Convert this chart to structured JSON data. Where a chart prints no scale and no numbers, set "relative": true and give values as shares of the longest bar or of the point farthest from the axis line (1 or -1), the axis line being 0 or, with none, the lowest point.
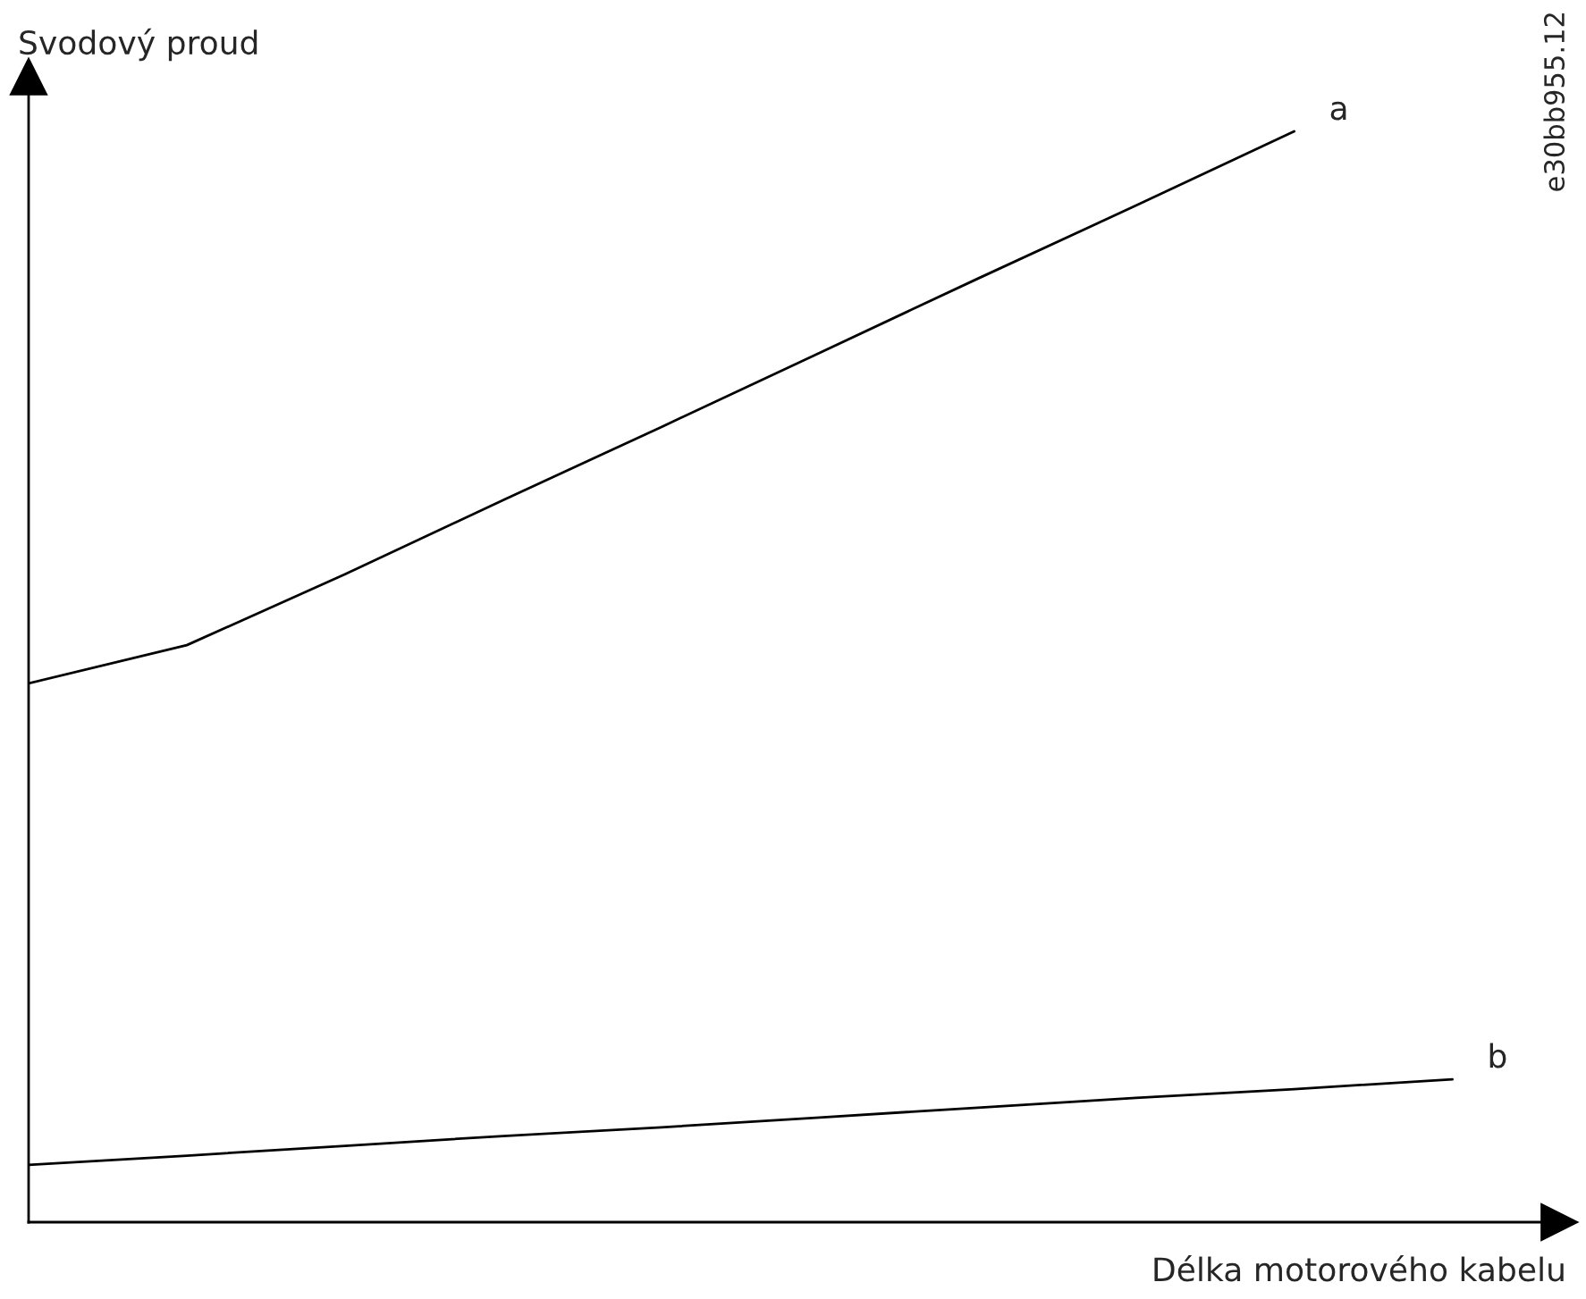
{
  "chart_data": {
    "type": "line",
    "relative": true,
    "xlabel": "Délka motorového kabelu",
    "ylabel": "Svodový proud",
    "annotations": [
      "e30bb955.12"
    ],
    "categories": [
      null,
      null,
      null,
      null,
      null,
      null,
      null,
      null,
      null,
      null
    ],
    "legend": false,
    "marker": "none",
    "line_style": "solid",
    "series": [
      {
        "name": "a",
        "color": "#000000",
        "values": [
          0.494,
          0.529,
          0.594,
          0.662,
          0.729,
          0.797,
          0.865,
          0.932,
          1.0,
          null
        ]
      },
      {
        "name": "b",
        "color": "#000000",
        "values": [
          0.0525,
          0.061,
          0.07,
          0.079,
          0.087,
          0.096,
          0.105,
          0.114,
          0.122,
          0.131
        ]
      }
    ]
  }
}
